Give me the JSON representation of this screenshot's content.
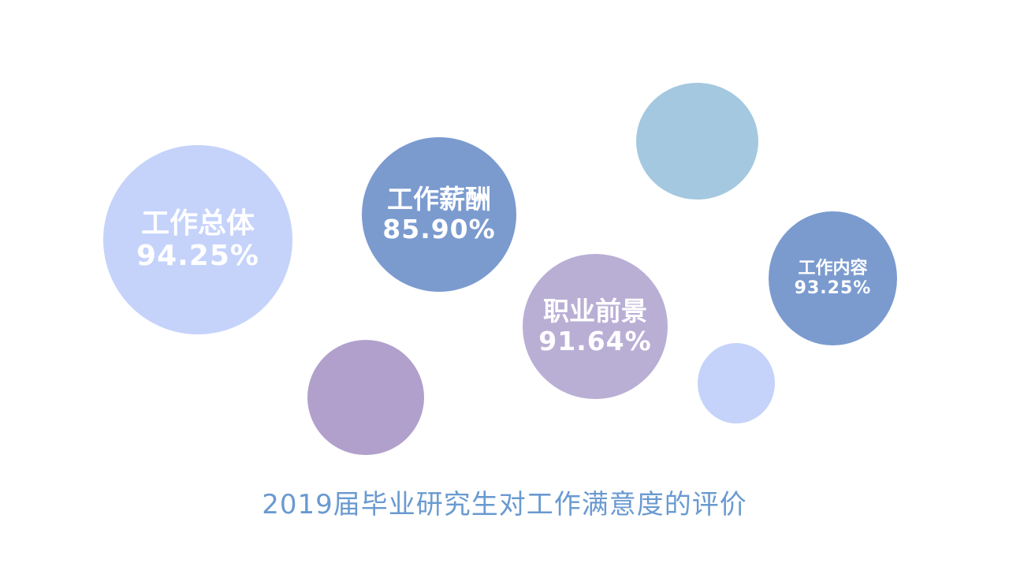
{
  "chart_data": {
    "type": "bubble",
    "title": "2019届毕业研究生对工作满意度的评价",
    "series": [
      {
        "label": "工作总体",
        "value_text": "94.25%",
        "value": 94.25,
        "color": "#c5d3fb"
      },
      {
        "label": "工作薪酬",
        "value_text": "85.90%",
        "value": 85.9,
        "color": "#7b9bcf"
      },
      {
        "label": "职业前景",
        "value_text": "91.64%",
        "value": 91.64,
        "color": "#b9afd5"
      },
      {
        "label": "工作内容",
        "value_text": "93.25%",
        "value": 93.25,
        "color": "#7b9bcf"
      }
    ],
    "decorations": [
      {
        "color": "#a4c8df"
      },
      {
        "color": "#b1a0cb"
      },
      {
        "color": "#c5d3fb"
      }
    ]
  }
}
